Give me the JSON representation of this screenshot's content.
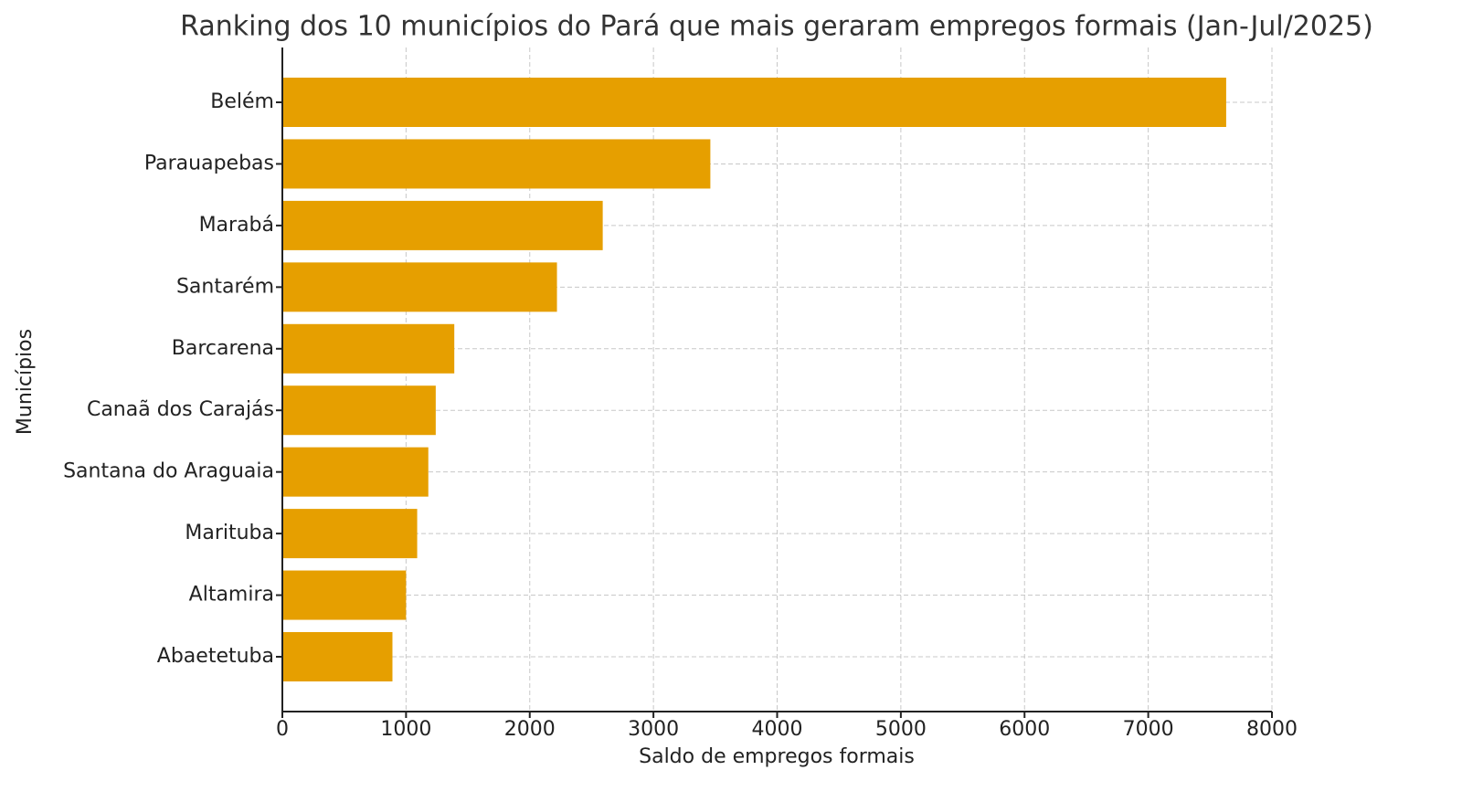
{
  "chart_data": {
    "type": "barh",
    "title": "Ranking dos 10 municípios do Pará que mais geraram empregos formais (Jan-Jul/2025)",
    "x_label": "Saldo de empregos formais",
    "y_label": "Municípios",
    "categories": [
      "Belém",
      "Parauapebas",
      "Marabá",
      "Santarém",
      "Barcarena",
      "Canaã dos Carajás",
      "Santana do Araguaia",
      "Marituba",
      "Altamira",
      "Abaetetuba"
    ],
    "values": [
      7630,
      3460,
      2590,
      2220,
      1390,
      1240,
      1180,
      1090,
      1000,
      890
    ],
    "color": "#e69f00",
    "xlim": [
      0,
      8000
    ],
    "xticks": [
      0,
      1000,
      2000,
      3000,
      4000,
      5000,
      6000,
      7000,
      8000
    ],
    "grid": true
  }
}
